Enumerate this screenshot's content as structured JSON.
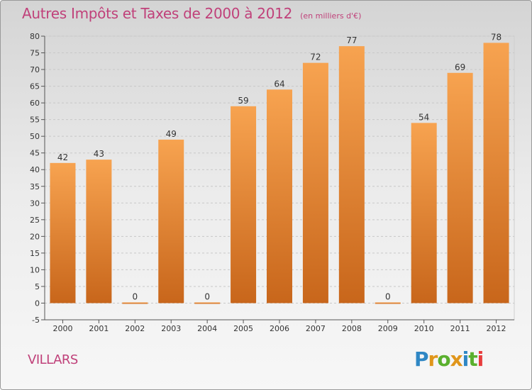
{
  "title": "Autres Impôts et Taxes de 2000 à 2012",
  "subtitle": "(en milliers d'€)",
  "town": "VILLARS",
  "logo": {
    "text": "Proxiti",
    "colors": [
      "#2f87c4",
      "#e0961b",
      "#5ab02e",
      "#e0961b",
      "#2f87c4",
      "#5ab02e",
      "#e83d3d"
    ]
  },
  "colors": {
    "bar_top": "#f7a350",
    "bar_bottom": "#c8661b",
    "title": "#c0417a"
  },
  "chart_data": {
    "type": "bar",
    "categories": [
      "2000",
      "2001",
      "2002",
      "2003",
      "2004",
      "2005",
      "2006",
      "2007",
      "2008",
      "2009",
      "2010",
      "2011",
      "2012"
    ],
    "values": [
      42,
      43,
      0,
      49,
      0,
      59,
      64,
      72,
      77,
      0,
      54,
      69,
      78
    ],
    "ylim": [
      -5,
      80
    ],
    "yticks": [
      -5,
      0,
      5,
      10,
      15,
      20,
      25,
      30,
      35,
      40,
      45,
      50,
      55,
      60,
      65,
      70,
      75,
      80
    ],
    "grid": true,
    "xlabel": "",
    "ylabel": ""
  }
}
